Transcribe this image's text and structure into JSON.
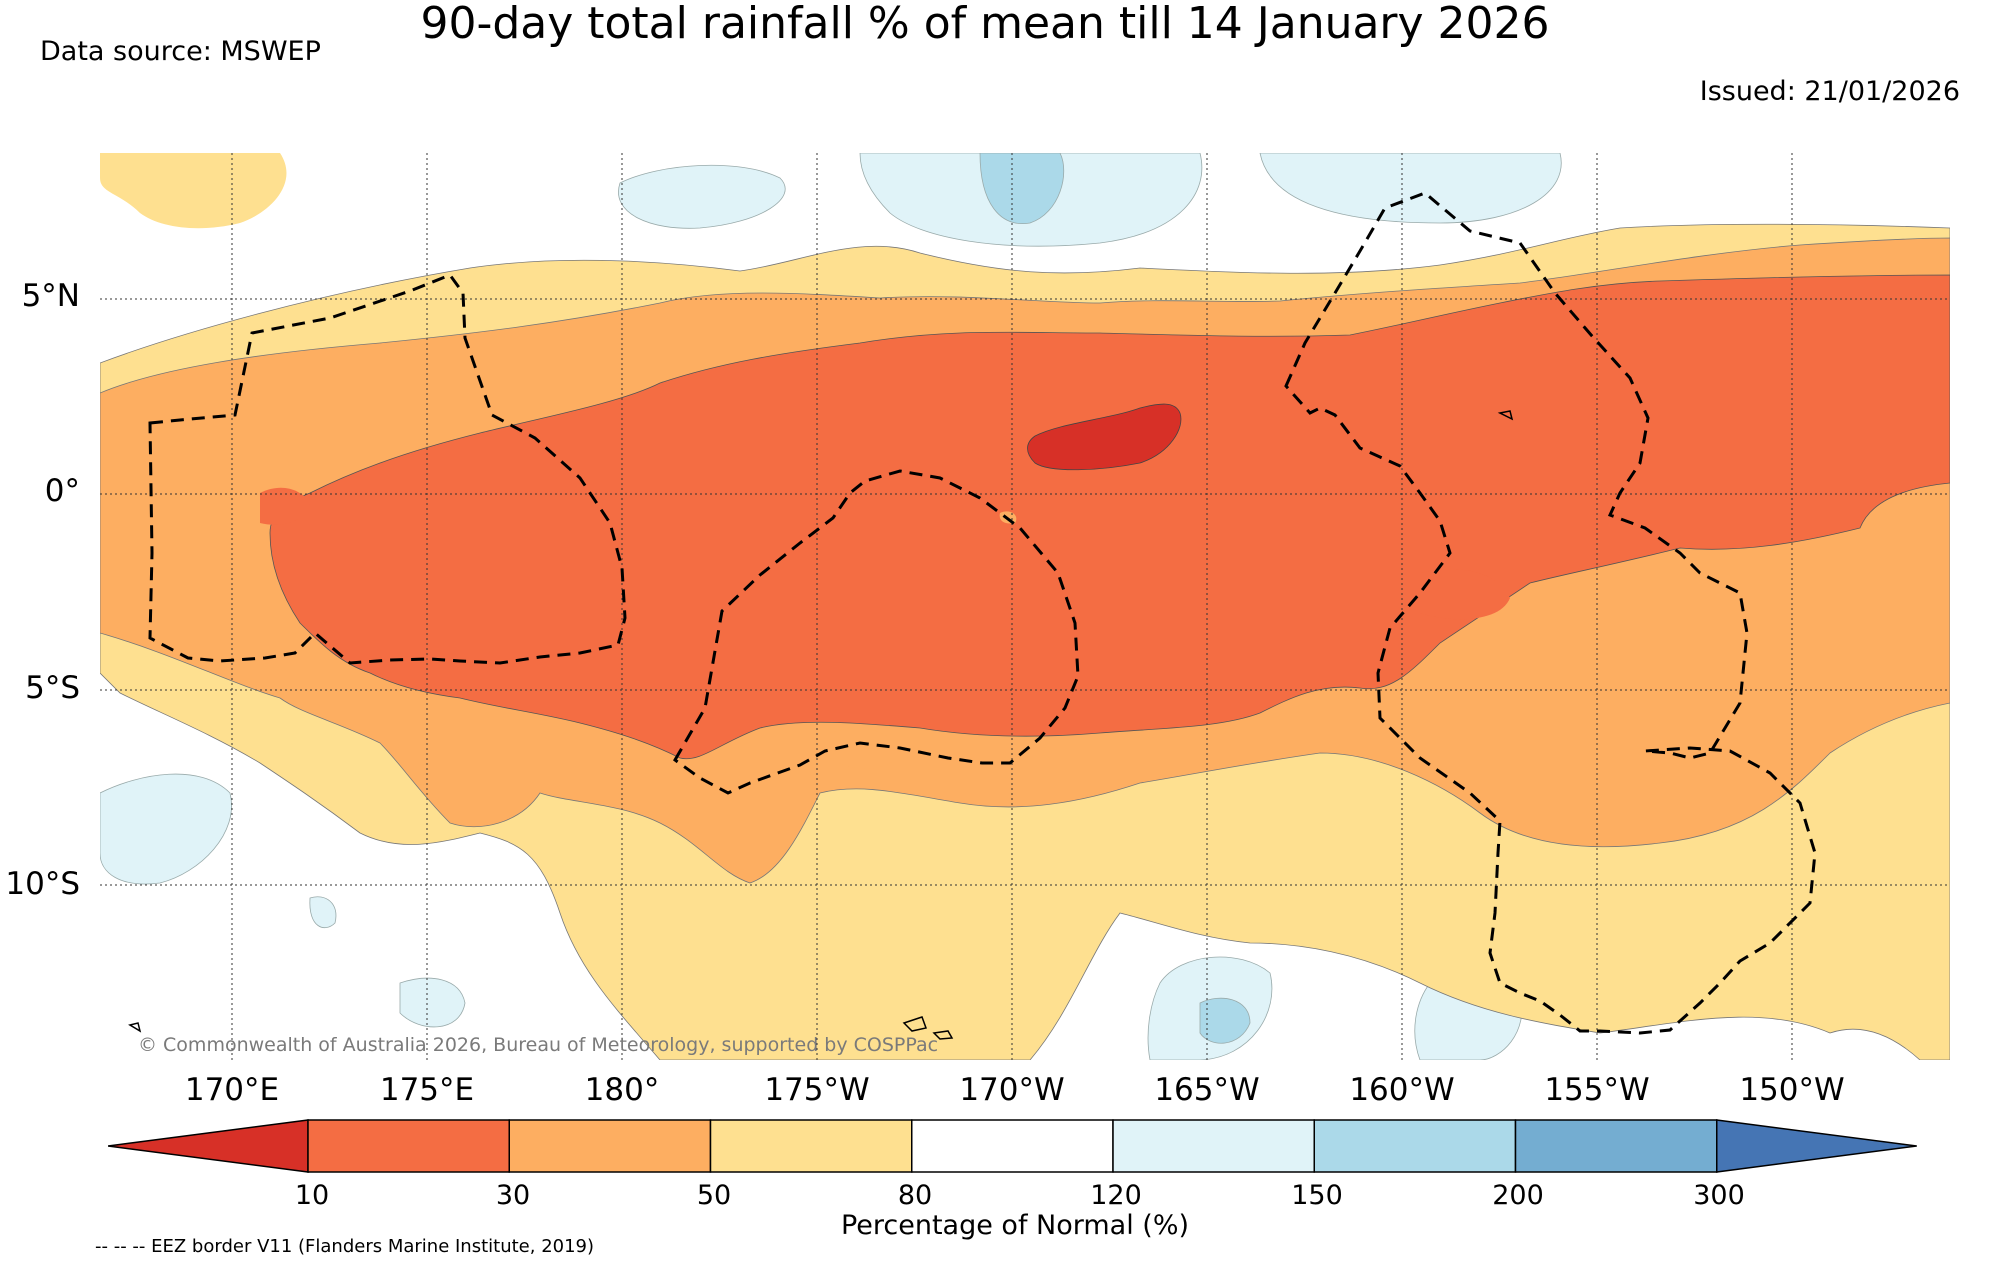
{
  "title": "90-day total rainfall % of mean till 14 January 2026",
  "data_source": "Data source: MSWEP",
  "issued": "Issued: 21/01/2026",
  "copyright": "© Commonwealth of Australia 2026, Bureau of Meteorology, supported by COSPPac",
  "eez_note": "-- -- -- EEZ border V11 (Flanders Marine Institute, 2019)",
  "lat_labels": [
    "5°N",
    "0°",
    "5°S",
    "10°S"
  ],
  "lon_labels": [
    "170°E",
    "175°E",
    "180°",
    "175°W",
    "170°W",
    "165°W",
    "160°W",
    "155°W",
    "150°W"
  ],
  "colorbar": {
    "label": "Percentage of Normal (%)",
    "ticks": [
      "10",
      "30",
      "50",
      "80",
      "120",
      "150",
      "200",
      "300"
    ],
    "colors": [
      "#d73027",
      "#f46d43",
      "#fdae61",
      "#fee090",
      "#ffffff",
      "#e0f3f8",
      "#abd9e9",
      "#74add1",
      "#4575b4"
    ]
  }
}
